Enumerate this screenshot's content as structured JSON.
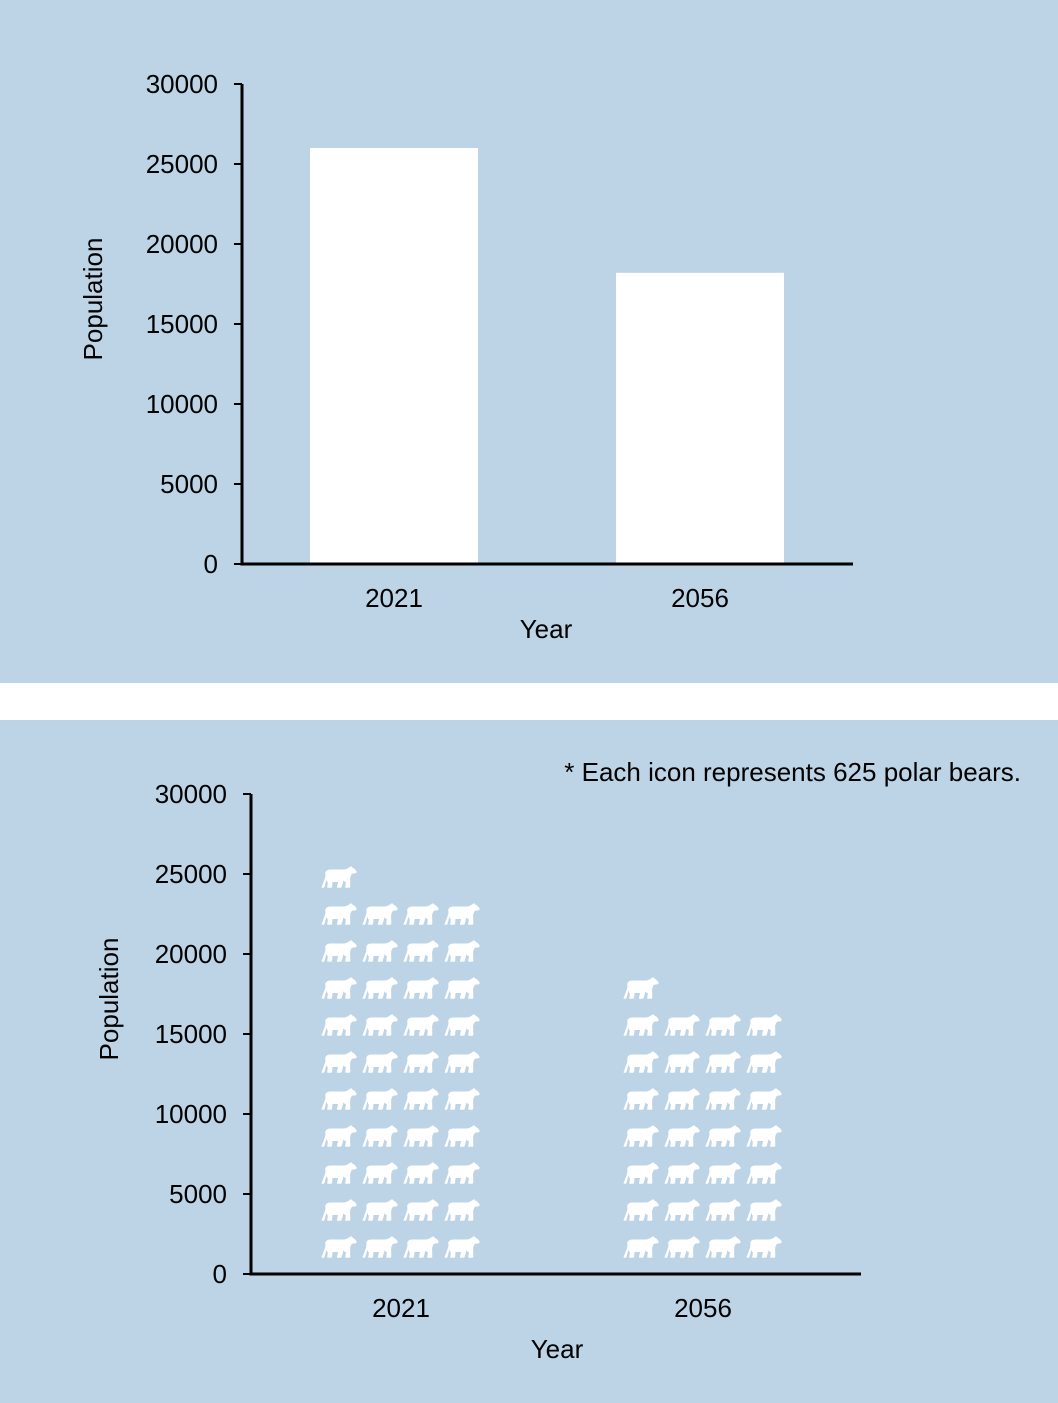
{
  "colors": {
    "panel_background": "#bcd4e6",
    "bar_fill": "#ffffff",
    "icon_fill": "#ffffff",
    "axis": "#000000"
  },
  "icon": "polar-bear-icon",
  "chart_data": [
    {
      "type": "bar",
      "categories": [
        "2021",
        "2056"
      ],
      "values": [
        26000,
        18200
      ],
      "xlabel": "Year",
      "ylabel": "Population",
      "ylim": [
        0,
        30000
      ],
      "yticks": [
        "0",
        "5000",
        "10000",
        "15000",
        "20000",
        "25000",
        "30000"
      ],
      "grid": false
    },
    {
      "type": "pictograph",
      "categories": [
        "2021",
        "2056"
      ],
      "icon_counts": [
        41,
        29
      ],
      "values": [
        25625,
        18125
      ],
      "xlabel": "Year",
      "ylabel": "Population",
      "ylim": [
        0,
        30000
      ],
      "yticks": [
        "0",
        "5000",
        "10000",
        "15000",
        "20000",
        "25000",
        "30000"
      ],
      "note": "* Each icon represents 625 polar bears.",
      "grid": false
    }
  ]
}
